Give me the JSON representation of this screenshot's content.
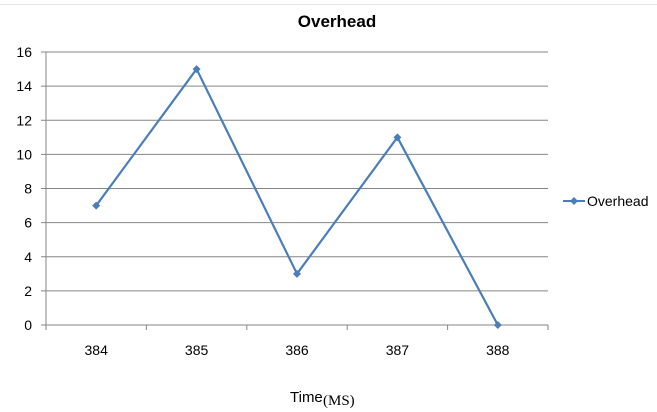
{
  "chart_data": {
    "type": "line",
    "title": "Overhead",
    "categories": [
      "384",
      "385",
      "386",
      "387",
      "388"
    ],
    "series": [
      {
        "name": "Overhead",
        "values": [
          7,
          15,
          3,
          11,
          0
        ],
        "color": "#4a7ebb",
        "marker": "diamond"
      }
    ],
    "xlabel": "Time",
    "xlabel_unit": "(MS)",
    "ylabel": "",
    "ylim": [
      0,
      16
    ],
    "yticks": [
      "0",
      "2",
      "4",
      "6",
      "8",
      "10",
      "12",
      "14",
      "16"
    ],
    "grid": true,
    "legend": "right"
  }
}
